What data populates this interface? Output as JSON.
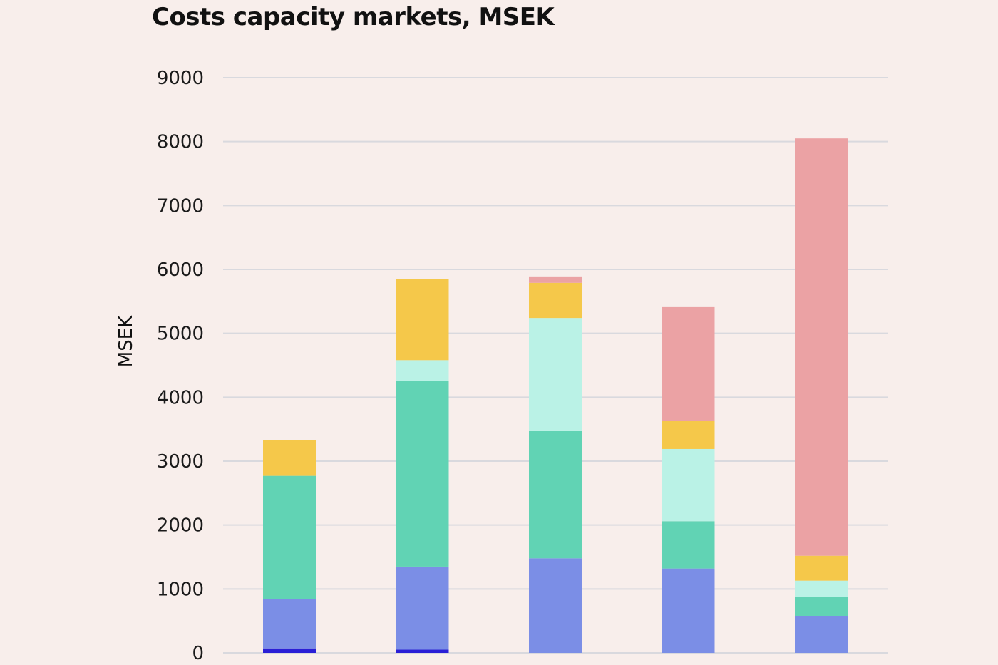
{
  "chart_data": {
    "type": "bar",
    "stacked": true,
    "title": "Costs capacity markets, MSEK",
    "xlabel": "",
    "ylabel": "MSEK",
    "ylim": [
      0,
      9000
    ],
    "yticks": [
      0,
      1000,
      2000,
      3000,
      4000,
      5000,
      6000,
      7000,
      8000,
      9000
    ],
    "grid": true,
    "categories": [
      "",
      "",
      "",
      "",
      ""
    ],
    "series": [
      {
        "color": "#2a1fd6",
        "values": [
          70,
          50,
          0,
          0,
          0
        ]
      },
      {
        "color": "#7b8ee6",
        "values": [
          770,
          1300,
          1480,
          1320,
          580
        ]
      },
      {
        "color": "#61d3b4",
        "values": [
          1930,
          2900,
          2000,
          740,
          300
        ]
      },
      {
        "color": "#baf2e6",
        "values": [
          0,
          330,
          1760,
          1130,
          250
        ]
      },
      {
        "color": "#f5c84a",
        "values": [
          560,
          1270,
          550,
          440,
          390
        ]
      },
      {
        "color": "#eba2a4",
        "values": [
          0,
          0,
          100,
          1780,
          6530
        ]
      }
    ]
  }
}
